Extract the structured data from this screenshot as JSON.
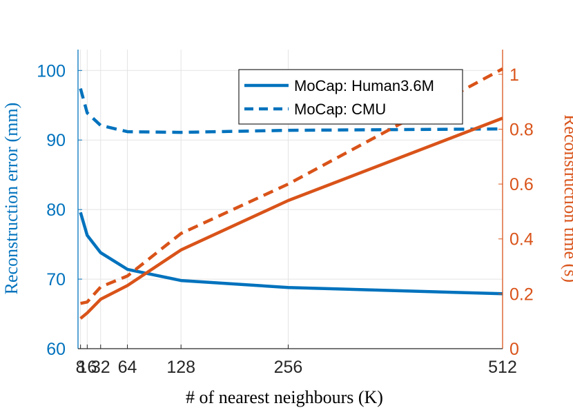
{
  "chart_data": {
    "type": "line",
    "title": "",
    "x": [
      8,
      16,
      32,
      64,
      128,
      256,
      512
    ],
    "x_tick_labels": [
      "8",
      "16",
      "32",
      "64",
      "128",
      "256",
      "512"
    ],
    "xlabel": "# of nearest neighbours (K)",
    "xlim": [
      5,
      512
    ],
    "grid": true,
    "left_axis": {
      "label": "Reconstruction error (mm)",
      "ylim": [
        60,
        103
      ],
      "ticks": [
        60,
        70,
        80,
        90,
        100
      ],
      "tick_labels": [
        "60",
        "70",
        "80",
        "90",
        "100"
      ],
      "color": "#0072BD"
    },
    "right_axis": {
      "label": "Reconstruction time (s)",
      "ylim": [
        0,
        1.09
      ],
      "ticks": [
        0,
        0.2,
        0.4,
        0.6,
        0.8,
        1
      ],
      "tick_labels": [
        "0",
        "0.2",
        "0.4",
        "0.6",
        "0.8",
        "1"
      ],
      "color": "#D95319"
    },
    "series": [
      {
        "name": "MoCap: Human3.6M",
        "metric": "error",
        "axis": "left",
        "style": "solid",
        "color": "#0072BD",
        "values": [
          79.6,
          76.3,
          73.8,
          71.4,
          69.8,
          68.8,
          67.9
        ]
      },
      {
        "name": "MoCap: CMU",
        "metric": "error",
        "axis": "left",
        "style": "dashed",
        "color": "#0072BD",
        "values": [
          97.4,
          93.9,
          92.1,
          91.2,
          91.1,
          91.4,
          91.6
        ]
      },
      {
        "name": "MoCap: Human3.6M",
        "metric": "time",
        "axis": "right",
        "style": "solid",
        "color": "#D95319",
        "values": [
          0.11,
          0.13,
          0.18,
          0.23,
          0.36,
          0.54,
          0.84
        ]
      },
      {
        "name": "MoCap: CMU",
        "metric": "time",
        "axis": "right",
        "style": "dashed",
        "color": "#D95319",
        "values": [
          0.165,
          0.17,
          0.225,
          0.265,
          0.42,
          0.6,
          1.02
        ]
      }
    ],
    "legend": {
      "placement": "top-right",
      "entries": [
        {
          "label": "MoCap: Human3.6M",
          "style": "solid",
          "color": "#0072BD"
        },
        {
          "label": "MoCap: CMU",
          "style": "dashed",
          "color": "#0072BD"
        }
      ]
    }
  }
}
